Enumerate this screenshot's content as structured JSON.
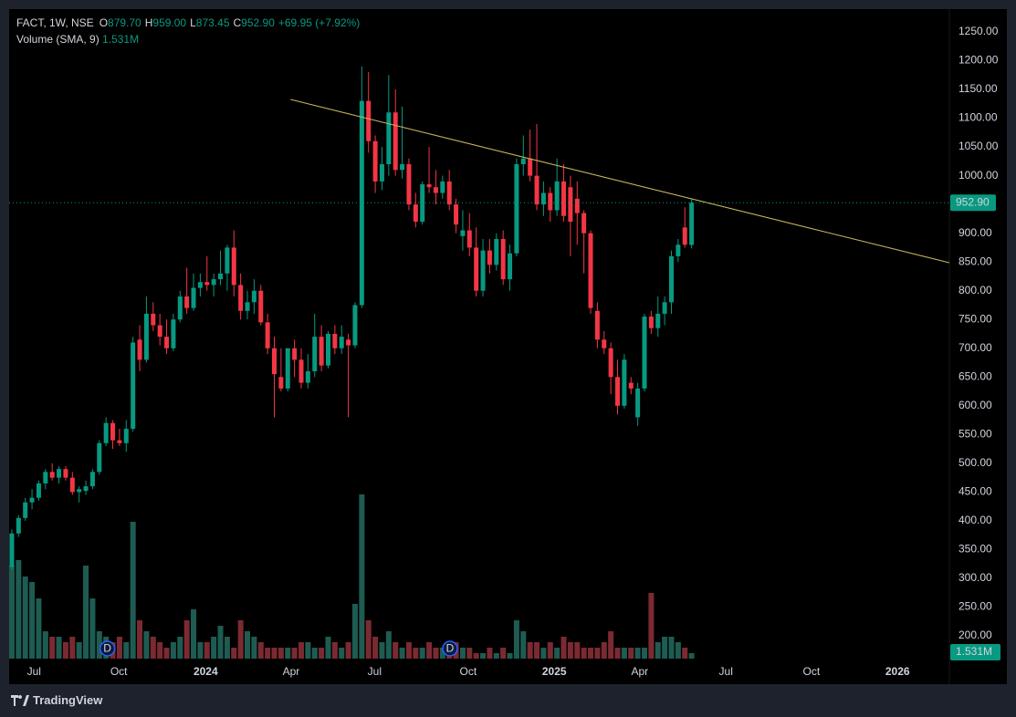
{
  "chart_data": {
    "type": "candlestick",
    "legend": {
      "symbol": "FACT, 1W, NSE",
      "ohlc": [
        {
          "key": "O",
          "label": "879.70"
        },
        {
          "key": "H",
          "label": "959.00"
        },
        {
          "key": "L",
          "label": "873.45"
        },
        {
          "key": "C",
          "label": "952.90"
        }
      ],
      "change": "+69.95 (+7.92%)",
      "volume_title": "Volume (SMA, 9)",
      "volume_sma": "1.531M"
    },
    "open": [
      320,
      378,
      405,
      432,
      440,
      465,
      485,
      475,
      490,
      475,
      450,
      452,
      460,
      485,
      535,
      570,
      540,
      535,
      560,
      715,
      680,
      760,
      740,
      720,
      700,
      750,
      790,
      770,
      805,
      815,
      810,
      820,
      830,
      875,
      810,
      765,
      780,
      800,
      745,
      700,
      650,
      630,
      700,
      680,
      640,
      660,
      720,
      670,
      725,
      700,
      715,
      705,
      775,
      1130,
      1060,
      990,
      1020,
      1110,
      1010,
      1020,
      950,
      920,
      985,
      980,
      970,
      990,
      950,
      895,
      905,
      875,
      800,
      870,
      845,
      890,
      820,
      865,
      1020,
      1030,
      1000,
      950,
      970,
      940,
      990,
      980,
      960,
      935,
      900,
      765,
      715,
      700,
      650,
      600,
      640,
      580,
      630,
      755,
      735,
      760,
      780,
      860,
      910,
      879.7
    ],
    "high": [
      385,
      410,
      440,
      455,
      470,
      490,
      500,
      495,
      495,
      485,
      460,
      470,
      490,
      540,
      580,
      575,
      560,
      575,
      720,
      740,
      790,
      780,
      760,
      750,
      760,
      800,
      840,
      830,
      830,
      860,
      830,
      870,
      880,
      905,
      830,
      800,
      820,
      810,
      760,
      720,
      700,
      700,
      715,
      700,
      690,
      760,
      740,
      730,
      740,
      740,
      725,
      780,
      1190,
      1180,
      1070,
      1050,
      1175,
      1150,
      1120,
      1030,
      970,
      990,
      1050,
      1010,
      1000,
      1010,
      960,
      940,
      935,
      910,
      890,
      890,
      900,
      905,
      880,
      1030,
      1070,
      1080,
      1090,
      990,
      980,
      1030,
      1020,
      1000,
      990,
      940,
      905,
      780,
      730,
      710,
      680,
      690,
      650,
      640,
      760,
      765,
      790,
      790,
      870,
      890,
      945,
      959
    ],
    "low": [
      315,
      372,
      400,
      420,
      435,
      455,
      470,
      465,
      470,
      445,
      432,
      445,
      455,
      480,
      530,
      525,
      530,
      520,
      555,
      660,
      675,
      730,
      705,
      690,
      695,
      745,
      760,
      765,
      790,
      800,
      790,
      810,
      800,
      790,
      750,
      750,
      760,
      740,
      690,
      580,
      625,
      625,
      650,
      630,
      630,
      650,
      660,
      665,
      690,
      690,
      580,
      700,
      770,
      1040,
      970,
      975,
      1000,
      1000,
      995,
      940,
      910,
      915,
      970,
      950,
      960,
      940,
      900,
      870,
      860,
      790,
      790,
      830,
      835,
      810,
      800,
      860,
      1000,
      990,
      940,
      930,
      920,
      930,
      920,
      860,
      880,
      830,
      760,
      700,
      690,
      620,
      585,
      595,
      620,
      565,
      625,
      725,
      720,
      740,
      760,
      850,
      875,
      873.45
    ],
    "close": [
      378,
      405,
      432,
      440,
      465,
      485,
      475,
      490,
      475,
      450,
      455,
      460,
      485,
      535,
      570,
      540,
      535,
      560,
      710,
      680,
      760,
      740,
      720,
      700,
      750,
      790,
      770,
      805,
      815,
      810,
      820,
      830,
      875,
      810,
      765,
      780,
      800,
      745,
      700,
      655,
      630,
      700,
      680,
      640,
      660,
      720,
      670,
      725,
      700,
      720,
      705,
      775,
      1130,
      1060,
      990,
      1020,
      1110,
      1010,
      1020,
      950,
      920,
      985,
      980,
      970,
      990,
      950,
      915,
      905,
      875,
      800,
      870,
      845,
      890,
      820,
      865,
      1020,
      1030,
      1000,
      950,
      970,
      940,
      990,
      930,
      920,
      935,
      900,
      770,
      715,
      700,
      650,
      600,
      680,
      630,
      630,
      755,
      735,
      760,
      780,
      860,
      880,
      880,
      952.9
    ],
    "volume": [
      17,
      18,
      15,
      14,
      11,
      5,
      4,
      4,
      3,
      4,
      3,
      17,
      11,
      5,
      4,
      3,
      4,
      3,
      25,
      7,
      5,
      4,
      3,
      2,
      3,
      4,
      7,
      9,
      3,
      3,
      4,
      6,
      4,
      2,
      7,
      5,
      4,
      3,
      2,
      2,
      2,
      2,
      2,
      3,
      3,
      2,
      2,
      4,
      3,
      2,
      3,
      10,
      30,
      7,
      4,
      3,
      5,
      3,
      2,
      3,
      2,
      2,
      3,
      2,
      2,
      2,
      3,
      2,
      2,
      1,
      1,
      2,
      1,
      2,
      1,
      7,
      5,
      3,
      3,
      2,
      3,
      2,
      4,
      3,
      3,
      2,
      2,
      2,
      3,
      5,
      2,
      2,
      2,
      2,
      2,
      12,
      3,
      4,
      4,
      3,
      2,
      1
    ],
    "up_color": "#089981",
    "down_color": "#f23645",
    "volume_up_color": "#1e5c52",
    "volume_down_color": "#7b2a32",
    "xlim": [
      -0.4,
      139.3
    ],
    "xticks": [
      {
        "value": 3.3,
        "label": "Jul"
      },
      {
        "value": 15.9,
        "label": "Oct"
      },
      {
        "value": 28.8,
        "label": "2024"
      },
      {
        "value": 41.5,
        "label": "Apr"
      },
      {
        "value": 53.9,
        "label": "Jul"
      },
      {
        "value": 67.8,
        "label": "Oct"
      },
      {
        "value": 80.6,
        "label": "2025"
      },
      {
        "value": 93.3,
        "label": "Apr"
      },
      {
        "value": 106.1,
        "label": "Jul"
      },
      {
        "value": 118.8,
        "label": "Oct"
      },
      {
        "value": 131.6,
        "label": "2026"
      }
    ],
    "ylim": [
      160.4,
      1289.6
    ],
    "yticks": [
      {
        "value": 200,
        "label": "200.00"
      },
      {
        "value": 250,
        "label": "250.00"
      },
      {
        "value": 300,
        "label": "300.00"
      },
      {
        "value": 350,
        "label": "350.00"
      },
      {
        "value": 400,
        "label": "400.00"
      },
      {
        "value": 450,
        "label": "450.00"
      },
      {
        "value": 500,
        "label": "500.00"
      },
      {
        "value": 550,
        "label": "550.00"
      },
      {
        "value": 600,
        "label": "600.00"
      },
      {
        "value": 650,
        "label": "650.00"
      },
      {
        "value": 700,
        "label": "700.00"
      },
      {
        "value": 750,
        "label": "750.00"
      },
      {
        "value": 800,
        "label": "800.00"
      },
      {
        "value": 850,
        "label": "850.00"
      },
      {
        "value": 900,
        "label": "900.00"
      },
      {
        "value": 950,
        "label": "950.00"
      },
      {
        "value": 1000,
        "label": "1000.00"
      },
      {
        "value": 1050,
        "label": "1050.00"
      },
      {
        "value": 1100,
        "label": "1100.00"
      },
      {
        "value": 1150,
        "label": "1150.00"
      },
      {
        "value": 1200,
        "label": "1200.00"
      },
      {
        "value": 1250,
        "label": "1250.00"
      }
    ],
    "volume_lim": [
      0,
      30
    ],
    "grid": false,
    "close_label": "952.90",
    "trendline": {
      "x": [
        41.4,
        139.3
      ],
      "y": [
        1132.6,
        848.7
      ],
      "color": "#c8b45a"
    },
    "markers": [
      {
        "x": 14.2,
        "label": "D"
      },
      {
        "x": 65.1,
        "label": "D"
      }
    ],
    "brand": "TradingView"
  }
}
